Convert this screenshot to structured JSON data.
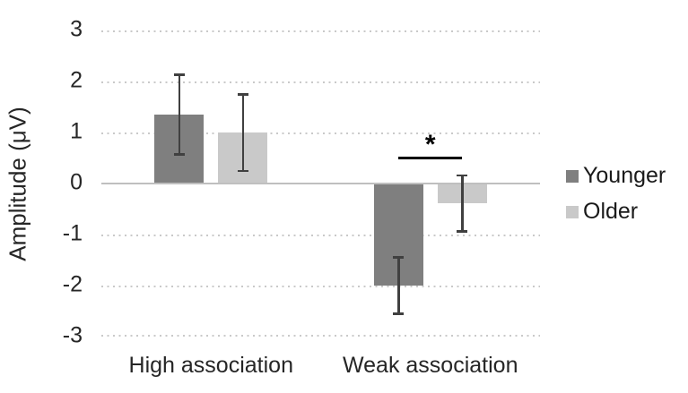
{
  "chart_data": {
    "type": "bar",
    "title": "",
    "ylabel": "Amplitude (μV)",
    "xlabel": "",
    "categories": [
      "High association",
      "Weak association"
    ],
    "series": [
      {
        "name": "Younger",
        "color": "#7f7f7f",
        "values": [
          1.35,
          -2.0
        ],
        "errors": [
          0.78,
          0.55
        ]
      },
      {
        "name": "Older",
        "color": "#c9c9c9",
        "values": [
          1.0,
          -0.39
        ],
        "errors": [
          0.75,
          0.55
        ]
      }
    ],
    "ylim": [
      -3,
      3
    ],
    "yticks": [
      3,
      2,
      1,
      0,
      -1,
      -2,
      -3
    ],
    "grid": "horizontal-dotted",
    "legend_position": "right",
    "annotations": [
      {
        "type": "significance-bracket",
        "label": "*",
        "category": "Weak association",
        "between": [
          "Younger",
          "Older"
        ],
        "y_value": 0.53
      }
    ],
    "colors": {
      "gridline": "#c9c9c9",
      "zero_line": "#bfbfbf",
      "error_bar": "#404040",
      "text": "#262626",
      "annotation": "#000000",
      "background": "#ffffff"
    }
  }
}
